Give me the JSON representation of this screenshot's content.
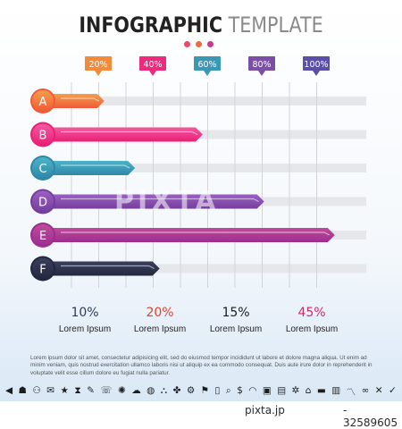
{
  "title": {
    "bold": "INFOGRAPHIC",
    "light": "TEMPLATE"
  },
  "dot_colors": [
    "#e94b6b",
    "#f06a3a",
    "#c83a8a"
  ],
  "chart_data": {
    "type": "bar",
    "orientation": "horizontal",
    "categories": [
      "A",
      "B",
      "C",
      "D",
      "E",
      "F"
    ],
    "values": [
      20,
      52,
      30,
      72,
      95,
      38
    ],
    "xlim": [
      0,
      100
    ],
    "tick_labels": [
      "20%",
      "40%",
      "60%",
      "80%",
      "100%"
    ],
    "tick_values": [
      20,
      40,
      60,
      80,
      100
    ],
    "tick_colors": [
      "#f38b3a",
      "#ec2b7e",
      "#3a98b5",
      "#7c4ea6",
      "#5a4ea8"
    ],
    "bar_colors": [
      "#f05a38",
      "#ea1f75",
      "#2f87a8",
      "#743f9c",
      "#9a2e8f",
      "#24283e"
    ],
    "bar_colors_light": [
      "#f69e4a",
      "#f35aa0",
      "#4cb3c9",
      "#9b5fc4",
      "#c24a9c",
      "#3a3f5e"
    ],
    "grid": true
  },
  "stats": [
    {
      "value": "10%",
      "label": "Lorem Ipsum",
      "color": "#2c3c5e"
    },
    {
      "value": "20%",
      "label": "Lorem Ipsum",
      "color": "#e8402e"
    },
    {
      "value": "15%",
      "label": "Lorem Ipsum",
      "color": "#1c1c1c"
    },
    {
      "value": "45%",
      "label": "Lorem Ipsum",
      "color": "#e0206f"
    }
  ],
  "body_text": "Lorem ipsum dolor sit amet, consectetur adipisicing elit, sed do eiusmod tempor incididunt ut labore et dolore magna aliqua. Ut enim ad minim veniam, quis nostrud exercitation ullamco laboris nisi ut aliquip ex ea commodo consequat. Duis aute irure dolor in reprehenderit in voluptate velit esse cillum dolore eu fugiat nulla pariatur.",
  "icons": [
    {
      "name": "megaphone-icon",
      "glyph": "◀"
    },
    {
      "name": "group-icon",
      "glyph": "☗"
    },
    {
      "name": "people-icon",
      "glyph": "⚇"
    },
    {
      "name": "envelope-icon",
      "glyph": "✉"
    },
    {
      "name": "star-icon",
      "glyph": "★"
    },
    {
      "name": "hourglass-icon",
      "glyph": "⧗"
    },
    {
      "name": "speech-bubble-icon",
      "glyph": "✎"
    },
    {
      "name": "chat-icon",
      "glyph": "☏"
    },
    {
      "name": "lightbulb-icon",
      "glyph": "✺"
    },
    {
      "name": "cloud-icon",
      "glyph": "☁"
    },
    {
      "name": "globe-icon",
      "glyph": "◍"
    },
    {
      "name": "network-icon",
      "glyph": "⛬"
    },
    {
      "name": "puzzle-icon",
      "glyph": "✤"
    },
    {
      "name": "gear-icon",
      "glyph": "⚙"
    },
    {
      "name": "flag-icon",
      "glyph": "⚑"
    },
    {
      "name": "mobile-icon",
      "glyph": "▯"
    },
    {
      "name": "search-icon",
      "glyph": "⌕"
    },
    {
      "name": "dollar-icon",
      "glyph": "$"
    },
    {
      "name": "wifi-icon",
      "glyph": "◠"
    },
    {
      "name": "trash-icon",
      "glyph": "▣"
    },
    {
      "name": "lock-icon",
      "glyph": "▤"
    },
    {
      "name": "settings-icon",
      "glyph": "✲"
    },
    {
      "name": "home-icon",
      "glyph": "⌂"
    },
    {
      "name": "briefcase-icon",
      "glyph": "▬"
    },
    {
      "name": "chart-icon",
      "glyph": "▥"
    },
    {
      "name": "trend-icon",
      "glyph": "〽"
    },
    {
      "name": "link-icon",
      "glyph": "∞"
    },
    {
      "name": "close-icon",
      "glyph": "✕"
    },
    {
      "name": "check-icon",
      "glyph": "✓"
    }
  ],
  "watermark": {
    "brand": "pixta.jp",
    "id": "- 32589605",
    "overlay": "PIXTA"
  }
}
